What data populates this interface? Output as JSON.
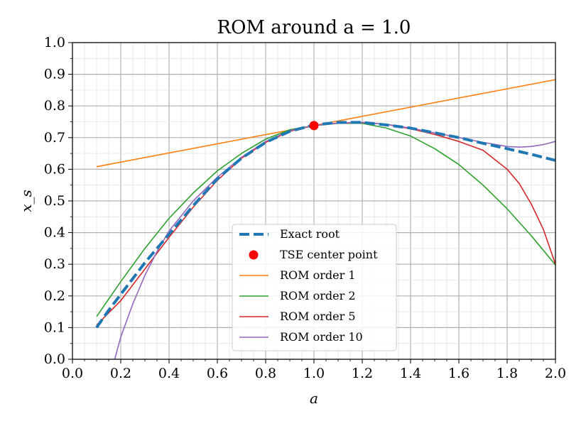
{
  "chart_data": {
    "type": "line",
    "title": "ROM around a = 1.0",
    "xlabel": "a",
    "ylabel": "x_s",
    "xlim": [
      0.0,
      2.0
    ],
    "ylim": [
      0.0,
      1.0
    ],
    "x_major_ticks": [
      "0.0",
      "0.2",
      "0.4",
      "0.6",
      "0.8",
      "1.0",
      "1.2",
      "1.4",
      "1.6",
      "1.8",
      "2.0"
    ],
    "y_major_ticks": [
      "0.0",
      "0.1",
      "0.2",
      "0.3",
      "0.4",
      "0.5",
      "0.6",
      "0.7",
      "0.8",
      "0.9",
      "1.0"
    ],
    "grid": "major and minor",
    "legend_position": "lower center",
    "series": [
      {
        "name": "Exact root",
        "color": "#1f77b4",
        "style": "dashed",
        "x": [
          0.1,
          0.15,
          0.2,
          0.3,
          0.4,
          0.5,
          0.6,
          0.7,
          0.8,
          0.9,
          1.0,
          1.1,
          1.2,
          1.3,
          1.4,
          1.5,
          1.6,
          1.7,
          1.8,
          1.9,
          2.0
        ],
        "y": [
          0.1,
          0.155,
          0.205,
          0.305,
          0.395,
          0.485,
          0.57,
          0.635,
          0.685,
          0.72,
          0.74,
          0.748,
          0.748,
          0.74,
          0.73,
          0.715,
          0.7,
          0.682,
          0.665,
          0.647,
          0.628
        ]
      },
      {
        "name": "TSE center point",
        "color": "#ff0000",
        "style": "marker",
        "x": [
          1.0
        ],
        "y": [
          0.738
        ]
      },
      {
        "name": "ROM order 1",
        "color": "#ff7f0e",
        "style": "solid",
        "x": [
          0.1,
          2.0
        ],
        "y": [
          0.608,
          0.883
        ]
      },
      {
        "name": "ROM order 2",
        "color": "#2ca02c",
        "style": "solid",
        "x": [
          0.1,
          0.2,
          0.3,
          0.4,
          0.5,
          0.6,
          0.7,
          0.8,
          0.9,
          1.0,
          1.1,
          1.2,
          1.3,
          1.4,
          1.5,
          1.6,
          1.7,
          1.8,
          1.9,
          2.0
        ],
        "y": [
          0.135,
          0.245,
          0.35,
          0.445,
          0.525,
          0.595,
          0.65,
          0.695,
          0.725,
          0.738,
          0.745,
          0.745,
          0.73,
          0.705,
          0.665,
          0.615,
          0.55,
          0.475,
          0.39,
          0.298
        ]
      },
      {
        "name": "ROM order 5",
        "color": "#d62728",
        "style": "solid",
        "x": [
          0.1,
          0.2,
          0.3,
          0.4,
          0.5,
          0.6,
          0.7,
          0.8,
          0.9,
          1.0,
          1.1,
          1.2,
          1.3,
          1.4,
          1.5,
          1.6,
          1.7,
          1.8,
          1.85,
          1.9,
          1.95,
          2.0
        ],
        "y": [
          0.108,
          0.185,
          0.285,
          0.385,
          0.48,
          0.565,
          0.635,
          0.685,
          0.72,
          0.738,
          0.746,
          0.748,
          0.742,
          0.728,
          0.71,
          0.688,
          0.66,
          0.6,
          0.555,
          0.49,
          0.41,
          0.3
        ]
      },
      {
        "name": "ROM order 10",
        "color": "#9467bd",
        "style": "solid",
        "x": [
          0.175,
          0.2,
          0.25,
          0.3,
          0.35,
          0.4,
          0.5,
          0.6,
          0.7,
          0.8,
          0.9,
          1.0,
          1.1,
          1.2,
          1.3,
          1.4,
          1.5,
          1.6,
          1.7,
          1.8,
          1.85,
          1.9,
          1.95,
          2.0
        ],
        "y": [
          0.0,
          0.07,
          0.175,
          0.265,
          0.34,
          0.405,
          0.5,
          0.575,
          0.638,
          0.688,
          0.722,
          0.738,
          0.746,
          0.748,
          0.742,
          0.73,
          0.715,
          0.7,
          0.685,
          0.672,
          0.67,
          0.672,
          0.678,
          0.688
        ]
      }
    ]
  }
}
